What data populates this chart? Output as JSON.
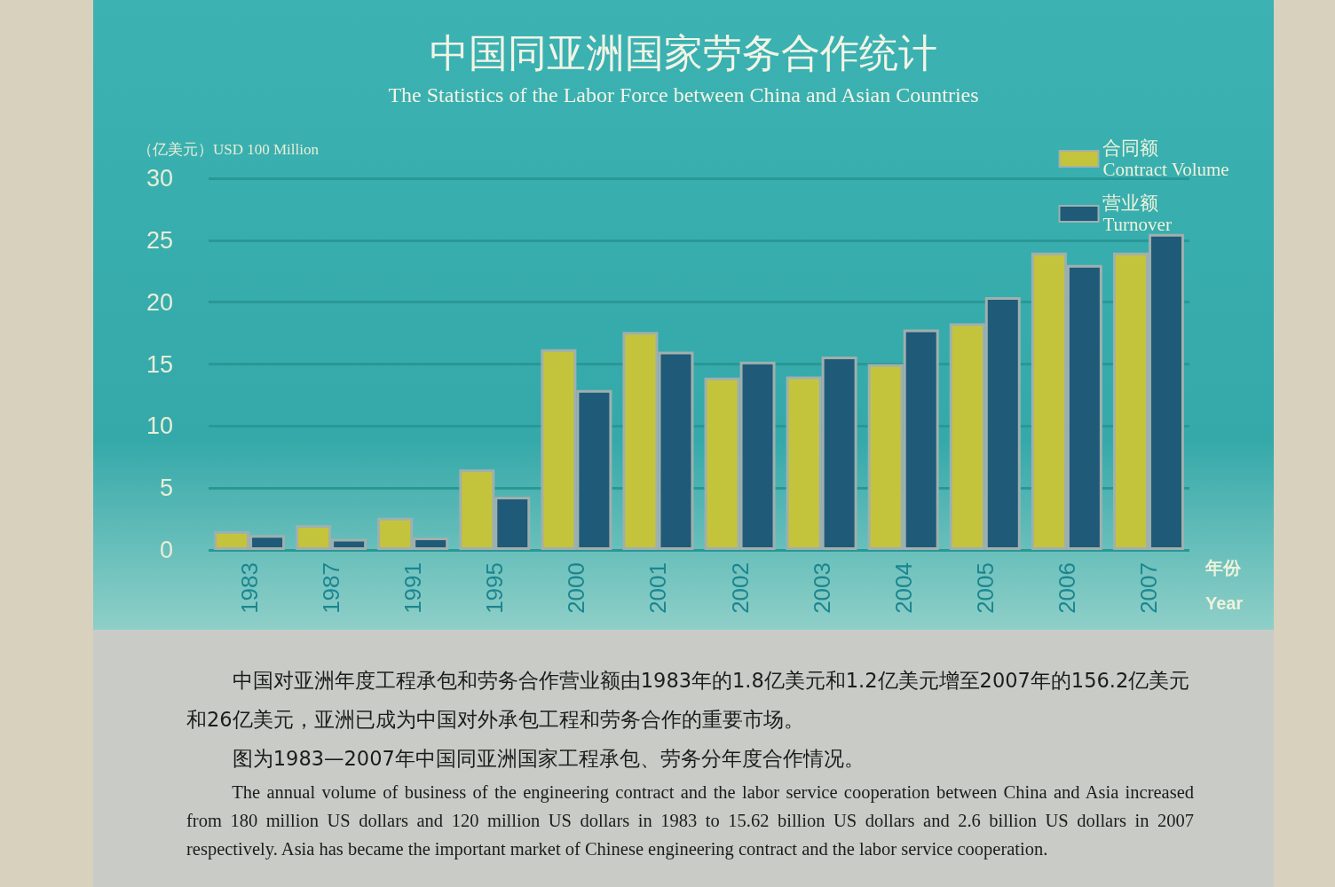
{
  "chart_data": {
    "type": "bar",
    "title": "中国同亚洲国家劳务合作统计",
    "subtitle": "The Statistics of the Labor Force between China and Asian Countries",
    "ylabel": "（亿美元）USD 100 Million",
    "xlabel": "年份\nYear",
    "categories": [
      "1983",
      "1987",
      "1991",
      "1995",
      "2000",
      "2001",
      "2002",
      "2003",
      "2004",
      "2005",
      "2006",
      "2007"
    ],
    "series": [
      {
        "name": "合同额\nContract Volume",
        "color": "#c4c43c",
        "values": [
          1.5,
          2.0,
          2.6,
          6.5,
          16.2,
          17.6,
          13.9,
          14.0,
          15.0,
          18.3,
          24.0,
          24.0
        ]
      },
      {
        "name": "营业额\nTurnover",
        "color": "#1f5a78",
        "values": [
          1.2,
          0.9,
          1.0,
          4.3,
          12.9,
          16.0,
          15.2,
          15.6,
          17.8,
          20.4,
          23.0,
          25.5
        ]
      }
    ],
    "ylim": [
      0,
      30
    ],
    "yticks": [
      0,
      5,
      10,
      15,
      20,
      25,
      30
    ],
    "grid": "y",
    "legend": "top right",
    "annotations": [
      "中国对亚洲年度工程承包和劳务合作营业额由1983年的1.8亿美元和1.2亿美元增至2007年的156.2亿美元和26亿美元，亚洲已成为中国对外承包工程和劳务合作的重要市场。",
      "图为1983—2007年中国同亚洲国家工程承包、劳务分年度合作情况。",
      "The annual volume of business of the engineering contract and the labor service cooperation between China and Asia increased from 180 million US dollars and 120 million US dollars in 1983 to 15.62 billion US dollars and 2.6 billion US dollars in 2007 respectively. Asia has became the important market of Chinese engineering contract and the labor service cooperation."
    ]
  }
}
